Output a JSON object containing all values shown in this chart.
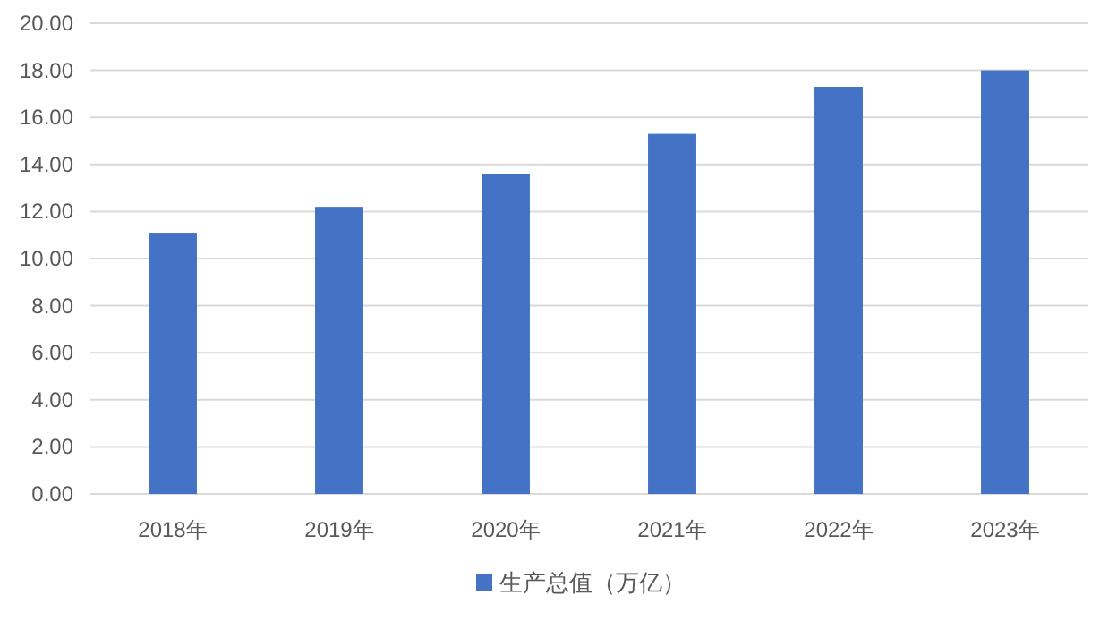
{
  "chart_data": {
    "type": "bar",
    "categories": [
      "2018年",
      "2019年",
      "2020年",
      "2021年",
      "2022年",
      "2023年"
    ],
    "series": [
      {
        "name": "生产总值（万亿）",
        "color": "#4472c4",
        "values": [
          11.1,
          12.2,
          13.6,
          15.3,
          17.3,
          18.0
        ]
      }
    ],
    "ylim": [
      0,
      20
    ],
    "yticks": [
      {
        "value": 0,
        "label": "0.00"
      },
      {
        "value": 2,
        "label": "2.00"
      },
      {
        "value": 4,
        "label": "4.00"
      },
      {
        "value": 6,
        "label": "6.00"
      },
      {
        "value": 8,
        "label": "8.00"
      },
      {
        "value": 10,
        "label": "10.00"
      },
      {
        "value": 12,
        "label": "12.00"
      },
      {
        "value": 14,
        "label": "14.00"
      },
      {
        "value": 16,
        "label": "16.00"
      },
      {
        "value": 18,
        "label": "18.00"
      },
      {
        "value": 20,
        "label": "20.00"
      }
    ],
    "grid": "y",
    "legend": "bottom"
  }
}
